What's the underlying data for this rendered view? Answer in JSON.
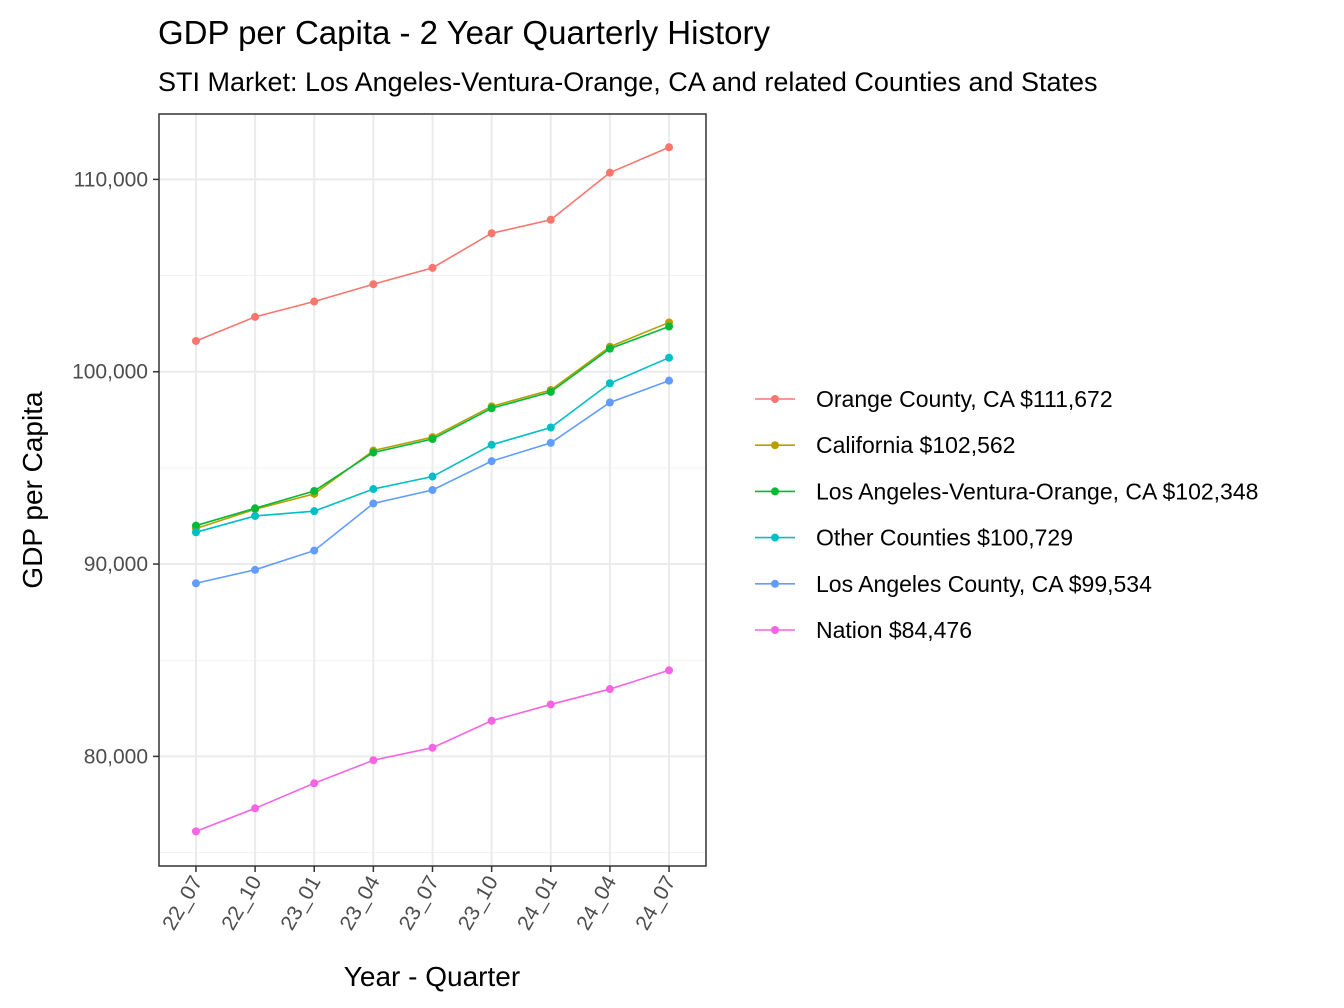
{
  "chart_data": {
    "type": "line",
    "title": "GDP per Capita - 2 Year Quarterly History",
    "subtitle": "STI Market: Los Angeles-Ventura-Orange, CA and related Counties and States",
    "xlabel": "Year - Quarter",
    "ylabel": "GDP per Capita",
    "categories": [
      "22_07",
      "22_10",
      "23_01",
      "23_04",
      "23_07",
      "23_10",
      "24_01",
      "24_04",
      "24_07"
    ],
    "ylim": [
      74300,
      113400
    ],
    "yticks": [
      80000,
      90000,
      100000,
      110000
    ],
    "ytick_labels": [
      "80,000",
      "90,000",
      "100,000",
      "110,000"
    ],
    "grid": true,
    "legend_position": "right",
    "series": [
      {
        "name": "Orange County, CA $111,672",
        "color": "#F8766D",
        "values": [
          101600,
          102850,
          103650,
          104550,
          105400,
          107200,
          107900,
          110350,
          111672
        ]
      },
      {
        "name": "California $102,562",
        "color": "#B79F00",
        "values": [
          91850,
          92850,
          93650,
          95900,
          96600,
          98200,
          99050,
          101300,
          102562
        ]
      },
      {
        "name": "Los Angeles-Ventura-Orange, CA $102,348",
        "color": "#00BA38",
        "values": [
          92000,
          92900,
          93800,
          95800,
          96500,
          98100,
          98950,
          101200,
          102348
        ]
      },
      {
        "name": "Other Counties $100,729",
        "color": "#00BFC4",
        "values": [
          91650,
          92500,
          92750,
          93900,
          94550,
          96200,
          97100,
          99400,
          100729
        ]
      },
      {
        "name": "Los Angeles County, CA $99,534",
        "color": "#619CFF",
        "values": [
          89000,
          89700,
          90700,
          93150,
          93850,
          95350,
          96300,
          98400,
          99534
        ]
      },
      {
        "name": "Nation $84,476",
        "color": "#F564E3",
        "values": [
          76100,
          77300,
          78600,
          79800,
          80450,
          81850,
          82700,
          83500,
          84476
        ]
      }
    ]
  }
}
